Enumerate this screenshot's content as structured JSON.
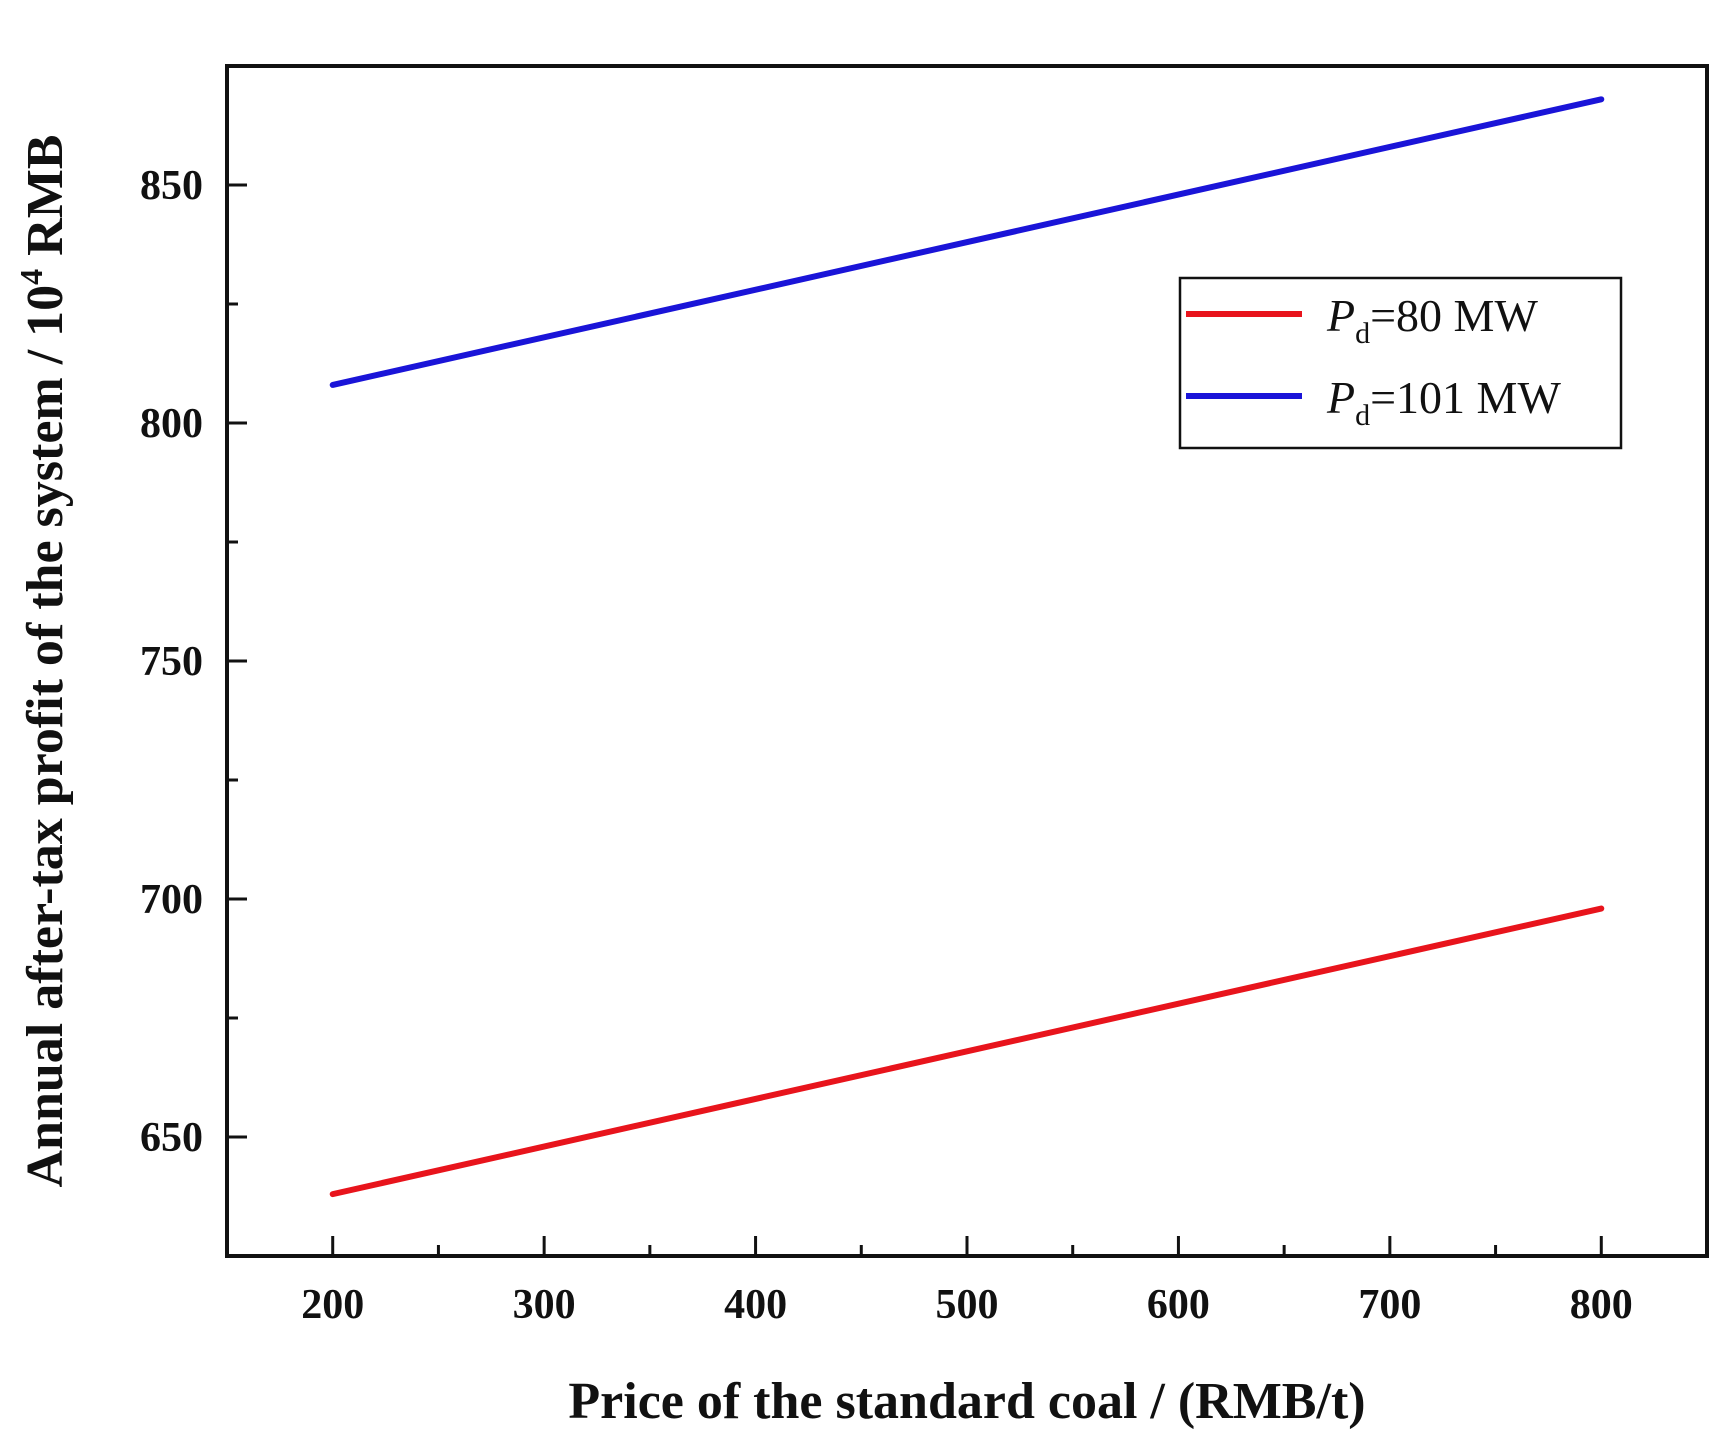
{
  "chart_data": {
    "type": "line",
    "title": "",
    "xlabel": "Price of the standard coal / (RMB/t)",
    "ylabel_parts": {
      "before": "Annual after-tax profit of the system / 10",
      "superscript": "4",
      "after": " RMB"
    },
    "xlim": [
      150,
      850
    ],
    "ylim": [
      625,
      875
    ],
    "x_ticks": [
      200,
      300,
      400,
      500,
      600,
      700,
      800
    ],
    "x_minor_ticks": [
      250,
      350,
      450,
      550,
      650,
      750
    ],
    "y_ticks": [
      650,
      700,
      750,
      800,
      850
    ],
    "y_minor_ticks": [
      675,
      725,
      775,
      825
    ],
    "grid": false,
    "legend_position": "upper-right",
    "series": [
      {
        "name": "Pd=80 MW",
        "legend_label": {
          "symbol": "P",
          "subscript": "d",
          "text": "=80 MW"
        },
        "color": "#e8141c",
        "x": [
          200,
          800
        ],
        "y": [
          638,
          698
        ]
      },
      {
        "name": "Pd=101 MW",
        "legend_label": {
          "symbol": "P",
          "subscript": "d",
          "text": "=101 MW"
        },
        "color": "#1a14d8",
        "x": [
          200,
          800
        ],
        "y": [
          808,
          868
        ]
      }
    ]
  }
}
